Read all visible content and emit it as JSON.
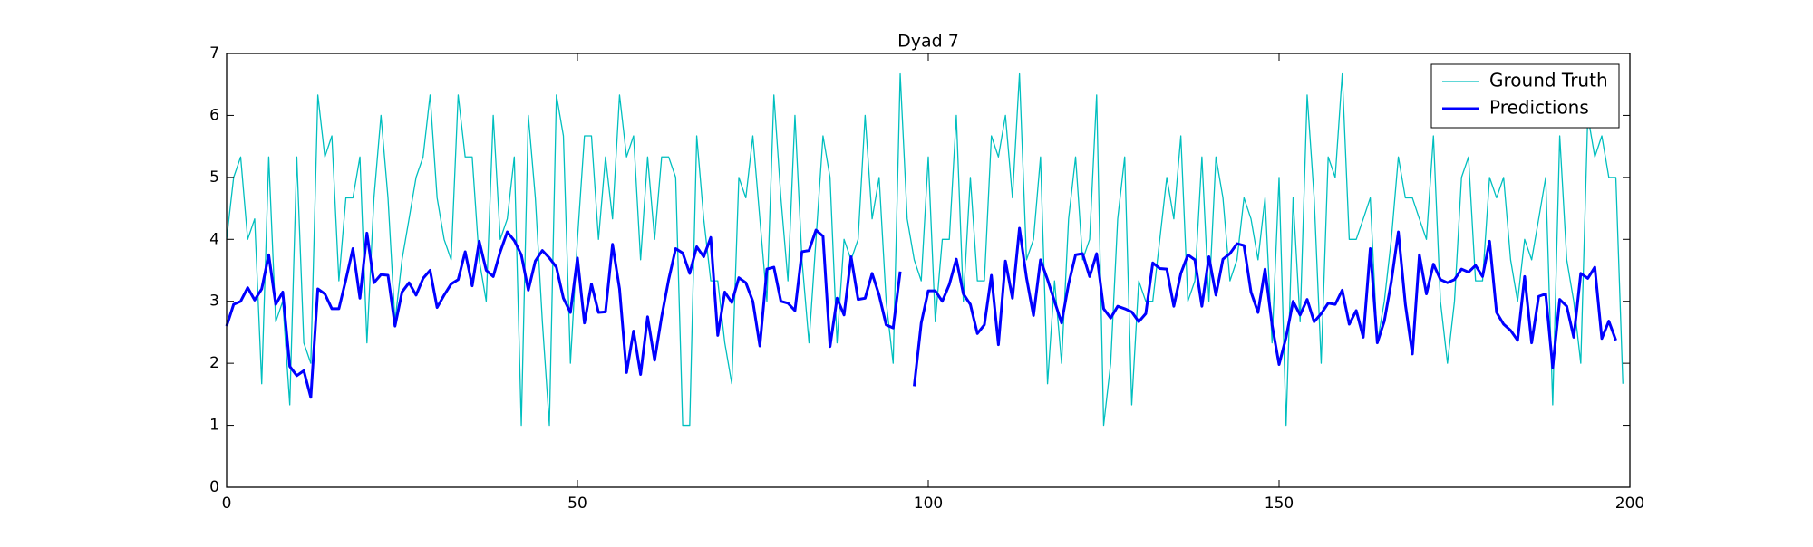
{
  "chart_data": {
    "type": "line",
    "title": "Dyad 7",
    "x": [
      0,
      1,
      2,
      3,
      4,
      5,
      6,
      7,
      8,
      9,
      10,
      11,
      12,
      13,
      14,
      15,
      16,
      17,
      18,
      19,
      20,
      21,
      22,
      23,
      24,
      25,
      26,
      27,
      28,
      29,
      30,
      31,
      32,
      33,
      34,
      35,
      36,
      37,
      38,
      39,
      40,
      41,
      42,
      43,
      44,
      45,
      46,
      47,
      48,
      49,
      50,
      51,
      52,
      53,
      54,
      55,
      56,
      57,
      58,
      59,
      60,
      61,
      62,
      63,
      64,
      65,
      66,
      67,
      68,
      69,
      70,
      71,
      72,
      73,
      74,
      75,
      76,
      77,
      78,
      79,
      80,
      81,
      82,
      83,
      84,
      85,
      86,
      87,
      88,
      89,
      90,
      91,
      92,
      93,
      94,
      95,
      96,
      97,
      98,
      99,
      100,
      101,
      102,
      103,
      104,
      105,
      106,
      107,
      108,
      109,
      110,
      111,
      112,
      113,
      114,
      115,
      116,
      117,
      118,
      119,
      120,
      121,
      122,
      123,
      124,
      125,
      126,
      127,
      128,
      129,
      130,
      131,
      132,
      133,
      134,
      135,
      136,
      137,
      138,
      139,
      140,
      141,
      142,
      143,
      144,
      145,
      146,
      147,
      148,
      149,
      150,
      151,
      152,
      153,
      154,
      155,
      156,
      157,
      158,
      159,
      160,
      161,
      162,
      163,
      164,
      165,
      166,
      167,
      168,
      169,
      170,
      171,
      172,
      173,
      174,
      175,
      176,
      177,
      178,
      179,
      180,
      181,
      182,
      183,
      184,
      185,
      186,
      187,
      188,
      189,
      190,
      191,
      192,
      193,
      194,
      195,
      196,
      197,
      198,
      199
    ],
    "series": [
      {
        "name": "Ground Truth",
        "color": "#00bfbf",
        "width": 1.3,
        "values": [
          4.0,
          5.0,
          5.33,
          4.0,
          4.33,
          1.67,
          5.33,
          2.67,
          3.0,
          1.33,
          5.33,
          2.33,
          2.0,
          6.33,
          5.33,
          5.67,
          3.33,
          4.67,
          4.67,
          5.33,
          2.33,
          4.67,
          6.0,
          4.67,
          2.67,
          3.67,
          4.33,
          5.0,
          5.33,
          6.33,
          4.67,
          4.0,
          3.67,
          6.33,
          5.33,
          5.33,
          3.67,
          3.0,
          6.0,
          4.0,
          4.33,
          5.33,
          1.0,
          6.0,
          4.67,
          2.67,
          1.0,
          6.33,
          5.67,
          2.0,
          4.0,
          5.67,
          5.67,
          4.0,
          5.33,
          4.33,
          6.33,
          5.33,
          5.67,
          3.67,
          5.33,
          4.0,
          5.33,
          5.33,
          5.0,
          1.0,
          1.0,
          5.67,
          4.33,
          3.33,
          3.33,
          2.33,
          1.67,
          5.0,
          4.67,
          5.67,
          4.33,
          3.0,
          6.33,
          4.67,
          3.33,
          6.0,
          3.67,
          2.33,
          4.0,
          5.67,
          5.0,
          2.33,
          4.0,
          3.67,
          4.0,
          6.0,
          4.33,
          5.0,
          3.0,
          2.0,
          6.67,
          4.33,
          3.67,
          3.33,
          5.33,
          2.67,
          4.0,
          4.0,
          6.0,
          3.0,
          5.0,
          3.33,
          3.33,
          5.67,
          5.33,
          6.0,
          4.67,
          6.67,
          3.67,
          4.0,
          5.33,
          1.67,
          3.33,
          2.0,
          4.33,
          5.33,
          3.67,
          4.0,
          6.33,
          1.0,
          2.0,
          4.33,
          5.33,
          1.33,
          3.33,
          3.0,
          3.0,
          4.0,
          5.0,
          4.33,
          5.67,
          3.0,
          3.33,
          5.33,
          3.0,
          5.33,
          4.67,
          3.33,
          3.67,
          4.67,
          4.33,
          3.67,
          4.67,
          2.33,
          5.0,
          1.0,
          4.67,
          2.67,
          6.33,
          4.67,
          2.0,
          5.33,
          5.0,
          6.67,
          4.0,
          4.0,
          4.33,
          4.67,
          2.33,
          3.0,
          4.0,
          5.33,
          4.67,
          4.67,
          4.33,
          4.0,
          5.67,
          3.0,
          2.0,
          3.0,
          5.0,
          5.33,
          3.33,
          3.33,
          5.0,
          4.67,
          5.0,
          3.67,
          3.0,
          4.0,
          3.67,
          4.33,
          5.0,
          1.33,
          5.67,
          3.67,
          3.0,
          2.0,
          6.0,
          5.33,
          5.67,
          5.0,
          5.0,
          1.67
        ]
      },
      {
        "name": "Predictions",
        "color": "#0000ff",
        "width": 3,
        "values": [
          2.6,
          2.95,
          3.0,
          3.22,
          3.02,
          3.2,
          3.75,
          2.95,
          3.15,
          1.95,
          1.8,
          1.88,
          1.45,
          3.2,
          3.12,
          2.88,
          2.88,
          3.35,
          3.85,
          3.05,
          4.1,
          3.3,
          3.43,
          3.42,
          2.6,
          3.15,
          3.3,
          3.1,
          3.37,
          3.5,
          2.9,
          3.1,
          3.28,
          3.35,
          3.8,
          3.25,
          3.97,
          3.5,
          3.4,
          3.8,
          4.12,
          3.98,
          3.75,
          3.18,
          3.65,
          3.82,
          3.7,
          3.55,
          3.05,
          2.82,
          3.7,
          2.65,
          3.28,
          2.82,
          2.83,
          3.92,
          3.2,
          1.85,
          2.52,
          1.82,
          2.75,
          2.05,
          2.75,
          3.35,
          3.85,
          3.78,
          3.45,
          3.88,
          3.72,
          4.03,
          2.45,
          3.15,
          2.98,
          3.38,
          3.3,
          3.0,
          2.28,
          3.52,
          3.55,
          3.0,
          2.97,
          2.85,
          3.8,
          3.82,
          4.15,
          4.05,
          2.27,
          3.05,
          2.78,
          3.72,
          3.03,
          3.05,
          3.45,
          3.1,
          2.62,
          2.57,
          3.48,
          null,
          1.63,
          2.65,
          3.17,
          3.17,
          3.0,
          3.27,
          3.68,
          3.12,
          2.95,
          2.48,
          2.62,
          3.42,
          2.3,
          3.65,
          3.05,
          4.18,
          3.38,
          2.77,
          3.67,
          3.35,
          3.0,
          2.65,
          3.28,
          3.75,
          3.77,
          3.4,
          3.77,
          2.88,
          2.73,
          2.92,
          2.88,
          2.83,
          2.67,
          2.8,
          3.62,
          3.53,
          3.52,
          2.92,
          3.45,
          3.75,
          3.67,
          2.92,
          3.72,
          3.1,
          3.68,
          3.77,
          3.93,
          3.9,
          3.15,
          2.82,
          3.52,
          2.62,
          1.98,
          2.42,
          3.0,
          2.78,
          3.03,
          2.67,
          2.8,
          2.97,
          2.95,
          3.18,
          2.63,
          2.85,
          2.42,
          3.85,
          2.33,
          2.68,
          3.32,
          4.12,
          2.95,
          2.15,
          3.75,
          3.12,
          3.6,
          3.35,
          3.3,
          3.35,
          3.52,
          3.47,
          3.58,
          3.4,
          3.97,
          2.82,
          2.63,
          2.53,
          2.37,
          3.4,
          2.33,
          3.08,
          3.12,
          1.93,
          3.03,
          2.92,
          2.42,
          3.45,
          3.37,
          3.55,
          2.4,
          2.68,
          2.37,
          null
        ]
      }
    ],
    "xlim": [
      0,
      200
    ],
    "xticks": [
      0,
      50,
      100,
      150,
      200
    ],
    "ylim": [
      0,
      7
    ],
    "yticks": [
      0,
      1,
      2,
      3,
      4,
      5,
      6,
      7
    ],
    "legend": "upper right",
    "grid": false
  }
}
